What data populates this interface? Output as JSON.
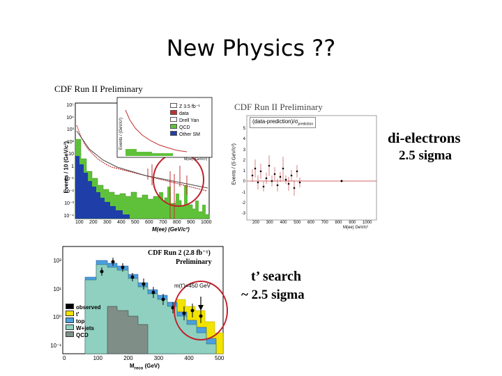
{
  "slide": {
    "title": "New Physics ??",
    "colors": {
      "signal_circle": "#c0202a",
      "qcd_blue": "#1f3ea8",
      "ttbar_green": "#5fc13a",
      "tprime_yellow": "#f2e300",
      "top_blue": "#4aa0e0",
      "wjets_teal": "#8fd0c0",
      "qcd_gray": "#7f8f88"
    }
  },
  "panel_dielectron_mass": {
    "header": "CDF Run II Preliminary",
    "y_axis_label": "Events / 10 (GeV/c²)",
    "x_axis_label": "M(ee) (GeV/c²)",
    "x_ticks": [
      "100",
      "200",
      "300",
      "400",
      "500",
      "600",
      "700",
      "800",
      "900",
      "1000"
    ],
    "y_ticks": [
      "10⁵",
      "10⁴",
      "10³",
      "10²",
      "10",
      "1",
      "10⁻¹",
      "10⁻²",
      "10⁻³",
      "10⁻⁴"
    ],
    "inset": {
      "y_axis_label": "Events / (GeV/c²)",
      "x_axis_label": "M(ee) (GeV/c²)",
      "legend": [
        "Z 3.5 fb⁻¹",
        "data",
        "Drell Yan",
        "QCD",
        "Other SM"
      ]
    }
  },
  "panel_significance": {
    "header": "CDF Run II Preliminary",
    "y_axis_label": "Events / (5 GeV/c²)",
    "legend_label": "(data-prediction)/σ",
    "legend_subscript": "prediction",
    "x_axis_label": "M(ee) GeV/c²",
    "x_ticks": [
      "200",
      "300",
      "400",
      "500",
      "600",
      "700",
      "800",
      "900",
      "1000"
    ],
    "y_ticks": [
      "5",
      "4",
      "3",
      "2",
      "1",
      "0",
      "-1",
      "-2",
      "-3"
    ]
  },
  "annotation_dielectron": {
    "line1": "di-electrons",
    "line2": "2.5 sigma"
  },
  "panel_tprime": {
    "header_line1": "CDF Run 2 (2.8 fb⁻¹)",
    "header_line2": "Preliminary",
    "annotation": "m(t')=450 GeV",
    "x_axis_label": "M",
    "x_axis_sub": "reco",
    "x_axis_unit": "(GeV)",
    "x_ticks": [
      "0",
      "100",
      "200",
      "300",
      "400",
      "500"
    ],
    "y_ticks": [
      "10²",
      "10¹",
      "10⁰",
      "10⁻¹"
    ],
    "legend": [
      {
        "label": "observed",
        "color": "#000000"
      },
      {
        "label": "t'",
        "color": "#f2e300"
      },
      {
        "label": "top",
        "color": "#4aa0e0"
      },
      {
        "label": "W+jets",
        "color": "#8fd0c0"
      },
      {
        "label": "QCD",
        "color": "#7f8f88"
      }
    ]
  },
  "annotation_tprime": {
    "line1": "t’ search",
    "line2": "~ 2.5 sigma"
  }
}
